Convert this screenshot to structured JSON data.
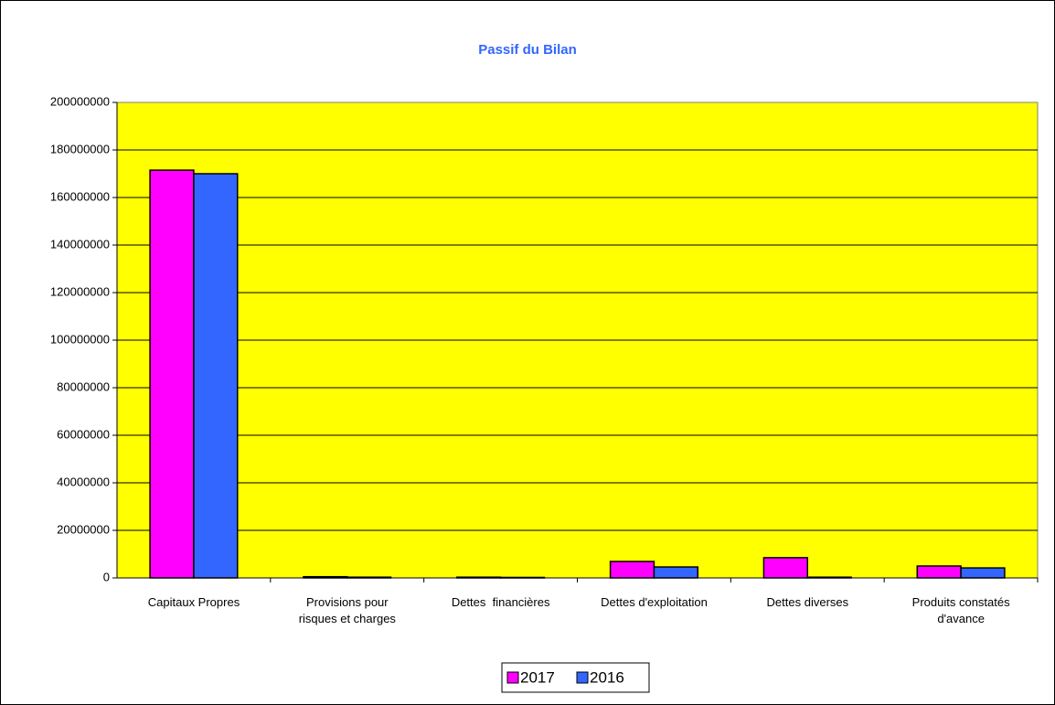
{
  "chart_data": {
    "type": "bar",
    "title": "Passif du Bilan",
    "categories": [
      "Capitaux Propres",
      "Provisions pour\nrisques et charges",
      "Dettes  financières",
      "Dettes d'exploitation",
      "Dettes diverses",
      "Produits constatés\nd'avance"
    ],
    "series": [
      {
        "name": "2017",
        "color": "#ff00ff",
        "values": [
          171500000,
          500000,
          300000,
          6900000,
          8500000,
          5000000
        ]
      },
      {
        "name": "2016",
        "color": "#3366ff",
        "values": [
          170000000,
          300000,
          200000,
          4600000,
          300000,
          4200000
        ]
      }
    ],
    "ylim": [
      0,
      200000000
    ],
    "yticks": [
      0,
      20000000,
      40000000,
      60000000,
      80000000,
      100000000,
      120000000,
      140000000,
      160000000,
      180000000,
      200000000
    ],
    "grid": true,
    "plot_color": "#ffff00",
    "legend": "bottom"
  }
}
